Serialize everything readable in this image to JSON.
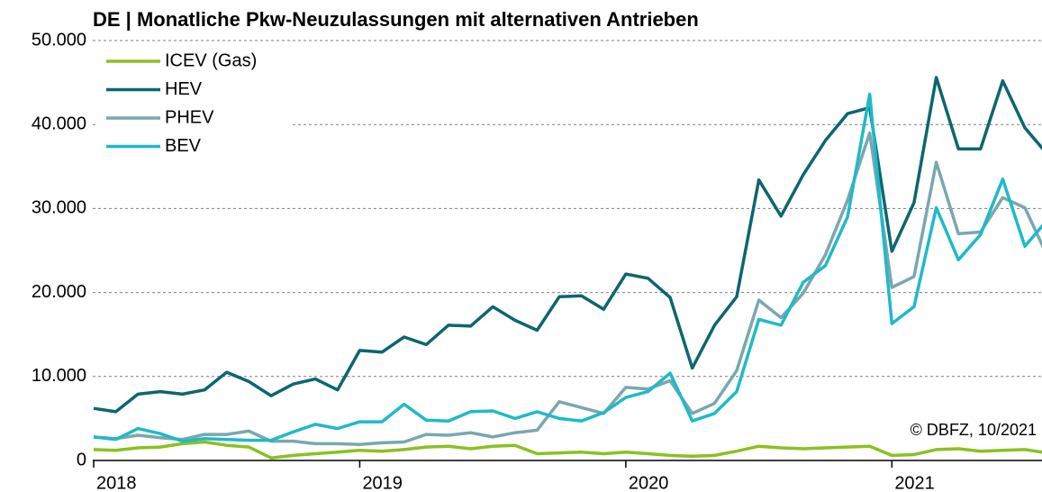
{
  "chart_data": {
    "type": "line",
    "title": "DE | Monatliche Pkw-Neuzulassungen mit alternativen Antrieben",
    "annotation": "© DBFZ, 10/2021",
    "categories": [
      "2018",
      null,
      null,
      null,
      null,
      null,
      null,
      null,
      null,
      null,
      null,
      null,
      "2019",
      null,
      null,
      null,
      null,
      null,
      null,
      null,
      null,
      null,
      null,
      null,
      "2020",
      null,
      null,
      null,
      null,
      null,
      null,
      null,
      null,
      null,
      null,
      null,
      "2021",
      null,
      null,
      null,
      null,
      null,
      null,
      null
    ],
    "series": [
      {
        "name": "ICEV (Gas)",
        "color": "#8cc021",
        "values": [
          1.3,
          1.2,
          1.5,
          1.6,
          2.0,
          2.2,
          1.8,
          1.6,
          0.3,
          0.6,
          0.8,
          1.0,
          1.2,
          1.1,
          1.3,
          1.6,
          1.7,
          1.4,
          1.7,
          1.8,
          0.8,
          0.9,
          1.0,
          0.8,
          1.0,
          0.8,
          0.6,
          0.5,
          0.6,
          1.1,
          1.7,
          1.5,
          1.4,
          1.5,
          1.6,
          1.7,
          0.6,
          0.7,
          1.3,
          1.4,
          1.1,
          1.2,
          1.3,
          0.9
        ]
      },
      {
        "name": "HEV",
        "color": "#0d6670",
        "values": [
          6.2,
          5.8,
          7.9,
          8.2,
          7.9,
          8.4,
          10.5,
          9.4,
          7.7,
          9.1,
          9.7,
          8.4,
          13.1,
          12.9,
          14.7,
          13.8,
          16.1,
          16.0,
          18.3,
          16.7,
          15.5,
          19.5,
          19.6,
          18.0,
          22.2,
          21.7,
          19.4,
          11.0,
          16.1,
          19.5,
          33.4,
          29.1,
          34.0,
          38.1,
          41.3,
          42.0,
          24.9,
          30.7,
          45.6,
          37.1,
          37.1,
          45.2,
          39.6,
          36.5
        ]
      },
      {
        "name": "PHEV",
        "color": "#7aa7b0",
        "values": [
          2.8,
          2.6,
          3.0,
          2.7,
          2.5,
          3.1,
          3.1,
          3.5,
          2.3,
          2.3,
          2.0,
          2.0,
          1.9,
          2.1,
          2.2,
          3.1,
          3.0,
          3.3,
          2.8,
          3.3,
          3.6,
          7.0,
          6.3,
          5.6,
          8.7,
          8.5,
          9.5,
          5.6,
          6.8,
          10.7,
          19.1,
          17.0,
          19.9,
          24.5,
          31.0,
          39.0,
          20.6,
          21.9,
          35.5,
          27.0,
          27.2,
          31.3,
          30.1,
          24.4
        ]
      },
      {
        "name": "BEV",
        "color": "#1fbac8",
        "values": [
          2.8,
          2.5,
          3.8,
          3.2,
          2.3,
          2.6,
          2.5,
          2.4,
          2.4,
          3.4,
          4.3,
          3.8,
          4.6,
          4.6,
          6.7,
          4.8,
          4.7,
          5.8,
          5.9,
          5.0,
          5.8,
          5.0,
          4.7,
          5.7,
          7.5,
          8.2,
          10.4,
          4.7,
          5.6,
          8.2,
          16.8,
          16.1,
          21.2,
          23.2,
          29.0,
          43.6,
          16.3,
          18.3,
          30.1,
          23.9,
          26.9,
          33.5,
          25.5,
          28.6
        ]
      }
    ],
    "ylim": [
      0,
      50
    ],
    "yticks": [
      0,
      {
        "value": 10,
        "label": "10.000"
      },
      {
        "value": 20,
        "label": "20.000"
      },
      {
        "value": 30,
        "label": "30.000"
      },
      {
        "value": 40,
        "label": "40.000"
      },
      {
        "value": 50,
        "label": "50.000"
      }
    ],
    "grid": true,
    "legend": "upper left"
  }
}
